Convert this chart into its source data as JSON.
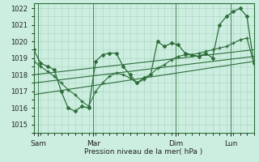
{
  "bg_color": "#cceee0",
  "grid_color": "#aad4c0",
  "line_color": "#2d6e3a",
  "xlabel": "Pression niveau de la mer( hPa )",
  "ylim": [
    1014.5,
    1022.3
  ],
  "yticks": [
    1015,
    1016,
    1017,
    1018,
    1019,
    1020,
    1021,
    1022
  ],
  "x_day_labels": [
    {
      "label": "Sam",
      "x": 4
    },
    {
      "label": "Mar",
      "x": 52
    },
    {
      "label": "Dim",
      "x": 124
    },
    {
      "label": "Lun",
      "x": 172
    }
  ],
  "vlines": [
    4,
    52,
    124,
    172
  ],
  "series1_x": [
    0,
    6,
    12,
    18,
    24,
    30,
    36,
    42,
    48,
    54,
    60,
    66,
    72,
    78,
    84,
    90,
    96,
    102,
    108,
    114,
    120,
    126,
    132,
    138,
    144,
    150,
    156,
    162,
    168,
    174,
    180,
    186,
    192
  ],
  "series1_y": [
    1019.5,
    1018.7,
    1018.5,
    1018.3,
    1017.0,
    1016.0,
    1015.8,
    1016.1,
    1016.0,
    1018.8,
    1019.2,
    1019.3,
    1019.3,
    1018.5,
    1018.0,
    1017.5,
    1017.8,
    1018.0,
    1020.0,
    1019.7,
    1019.9,
    1019.8,
    1019.3,
    1019.2,
    1019.1,
    1019.3,
    1019.0,
    1021.0,
    1021.5,
    1021.8,
    1022.0,
    1021.5,
    1018.7
  ],
  "series2_x": [
    0,
    6,
    12,
    18,
    24,
    30,
    36,
    42,
    48,
    54,
    60,
    66,
    72,
    78,
    84,
    90,
    96,
    102,
    108,
    114,
    120,
    126,
    132,
    138,
    144,
    150,
    156,
    162,
    168,
    174,
    180,
    186,
    192
  ],
  "series2_y": [
    1018.8,
    1018.5,
    1018.2,
    1017.9,
    1017.5,
    1017.1,
    1016.8,
    1016.4,
    1016.1,
    1017.0,
    1017.5,
    1017.9,
    1018.1,
    1018.0,
    1017.8,
    1017.5,
    1017.7,
    1018.0,
    1018.4,
    1018.6,
    1018.9,
    1019.1,
    1019.2,
    1019.2,
    1019.3,
    1019.4,
    1019.5,
    1019.6,
    1019.7,
    1019.9,
    1020.1,
    1020.2,
    1018.7
  ],
  "trend1_x": [
    0,
    192
  ],
  "trend1_y": [
    1016.8,
    1018.8
  ],
  "trend2_x": [
    0,
    192
  ],
  "trend2_y": [
    1017.5,
    1019.1
  ],
  "trend3_x": [
    0,
    192
  ],
  "trend3_y": [
    1018.0,
    1019.5
  ],
  "xlim": [
    0,
    192
  ]
}
